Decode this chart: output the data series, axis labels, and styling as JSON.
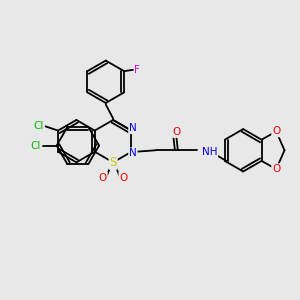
{
  "background_color": "#e8e8e8",
  "atom_colors": {
    "C": "#000000",
    "N": "#0000ee",
    "O": "#ee0000",
    "S": "#cccc00",
    "Cl": "#00bb00",
    "F": "#dd00dd",
    "H": "#000000"
  },
  "bond_color": "#000000",
  "bond_lw": 1.3,
  "font_size": 7.5,
  "figsize": [
    3.0,
    3.0
  ],
  "dpi": 100
}
